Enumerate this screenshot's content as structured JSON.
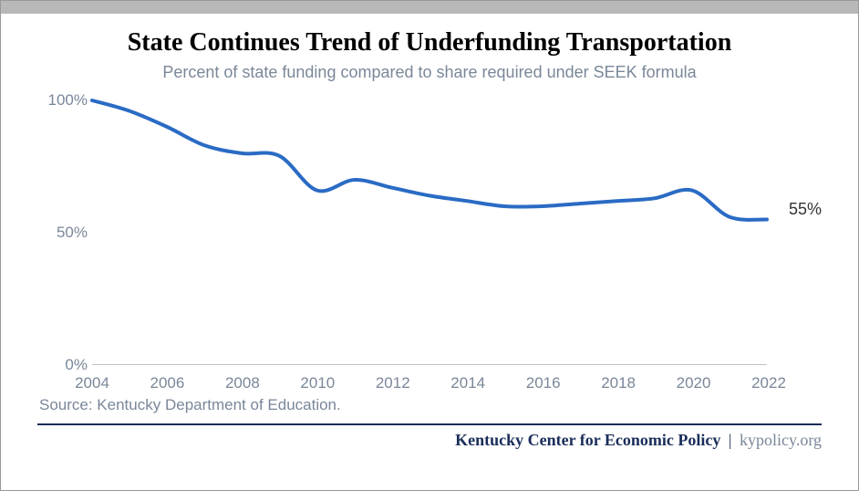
{
  "title": "State Continues Trend of Underfunding Transportation",
  "title_fontsize": 28,
  "subtitle": "Percent of state funding compared to share required under SEEK formula",
  "subtitle_fontsize": 18,
  "chart": {
    "type": "line",
    "x_values": [
      2004,
      2005,
      2006,
      2007,
      2008,
      2009,
      2010,
      2011,
      2012,
      2013,
      2014,
      2015,
      2016,
      2017,
      2018,
      2019,
      2020,
      2021,
      2022
    ],
    "y_values": [
      100,
      96,
      90,
      83,
      80,
      79,
      66,
      70,
      67,
      64,
      62,
      60,
      60,
      61,
      62,
      63,
      66,
      56,
      55
    ],
    "line_color": "#2a6bc4",
    "line_width": 4,
    "xlim": [
      2004,
      2022
    ],
    "ylim": [
      0,
      100
    ],
    "y_ticks": [
      0,
      50,
      100
    ],
    "y_tick_labels": [
      "0%",
      "50%",
      "100%"
    ],
    "x_ticks": [
      2004,
      2006,
      2008,
      2010,
      2012,
      2014,
      2016,
      2018,
      2020,
      2022
    ],
    "x_tick_labels": [
      "2004",
      "2006",
      "2008",
      "2010",
      "2012",
      "2014",
      "2016",
      "2018",
      "2020",
      "2022"
    ],
    "axis_label_color": "#7a8799",
    "axis_label_fontsize": 17,
    "axis_line_color": "#c0c0c0",
    "end_label": "55%",
    "end_label_fontsize": 18,
    "background_color": "#ffffff"
  },
  "source": "Source: Kentucky Department of Education.",
  "source_fontsize": 17,
  "footer": {
    "org": "Kentucky Center for Economic Policy",
    "url": "kypolicy.org",
    "color": "#1a2d5a",
    "fontsize": 18
  },
  "top_bar_color": "#b8b8b8"
}
